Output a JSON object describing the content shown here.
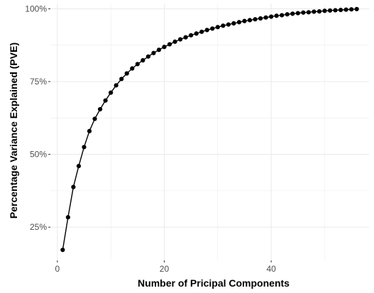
{
  "chart_data": {
    "type": "line",
    "title": "",
    "xlabel": "Number of Pricipal Components",
    "ylabel": "Percentage Variance Explained (PVE)",
    "xlim": [
      -1.3,
      58.3
    ],
    "ylim": [
      0.136,
      1.018
    ],
    "x_ticks": [
      0,
      20,
      40
    ],
    "x_tick_labels": [
      "0",
      "20",
      "40"
    ],
    "y_ticks": [
      0.25,
      0.5,
      0.75,
      1.0
    ],
    "y_tick_labels": [
      "25%",
      "50%",
      "75%",
      "100%"
    ],
    "grid": true,
    "colors": {
      "series": "#000000",
      "grid": "#ebebeb",
      "tick_text": "#4d4d4d"
    },
    "series": [
      {
        "x": [
          1,
          2,
          3,
          4,
          5,
          6,
          7,
          8,
          9,
          10,
          11,
          12,
          13,
          14,
          15,
          16,
          17,
          18,
          19,
          20,
          21,
          22,
          23,
          24,
          25,
          26,
          27,
          28,
          29,
          30,
          31,
          32,
          33,
          34,
          35,
          36,
          37,
          38,
          39,
          40,
          41,
          42,
          43,
          44,
          45,
          46,
          47,
          48,
          49,
          50,
          51,
          52,
          53,
          54,
          55,
          56
        ],
        "values": [
          0.172,
          0.284,
          0.388,
          0.46,
          0.525,
          0.58,
          0.622,
          0.655,
          0.685,
          0.712,
          0.737,
          0.759,
          0.778,
          0.795,
          0.81,
          0.823,
          0.836,
          0.848,
          0.859,
          0.869,
          0.878,
          0.887,
          0.895,
          0.902,
          0.909,
          0.915,
          0.921,
          0.927,
          0.932,
          0.937,
          0.942,
          0.946,
          0.95,
          0.954,
          0.958,
          0.961,
          0.964,
          0.967,
          0.97,
          0.973,
          0.976,
          0.978,
          0.981,
          0.983,
          0.985,
          0.987,
          0.988,
          0.99,
          0.991,
          0.993,
          0.994,
          0.995,
          0.996,
          0.997,
          0.998,
          0.999
        ]
      }
    ]
  }
}
